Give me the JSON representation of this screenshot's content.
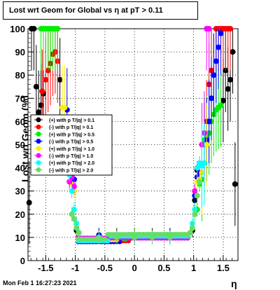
{
  "title": "Lost wrt Geom for Global vs   η at pT > 0.11",
  "ylabel": "Lost  wrt  Geom (%)",
  "xlabel": "η",
  "timestamp": "Mon Feb  1 16:27:23 2021",
  "chart_data": {
    "type": "scatter",
    "title": "Lost wrt Geom for Global vs   η at pT > 0.11",
    "xlabel": "η",
    "ylabel": "Lost  wrt  Geom (%)",
    "xlim": [
      -1.8,
      1.75
    ],
    "ylim": [
      0,
      100
    ],
    "grid": true,
    "legend_position": "middle-left",
    "x_ticks": [
      -1.5,
      -1,
      -0.5,
      0,
      0.5,
      1,
      1.5
    ],
    "x_tick_labels": [
      "-1.5",
      "-1",
      "-0.5",
      "0",
      "0.5",
      "1",
      "1.5"
    ],
    "y_ticks": [
      0,
      10,
      20,
      30,
      40,
      50,
      60,
      70,
      80,
      90,
      100
    ],
    "y_tick_labels": [
      "0",
      "10",
      "20",
      "30",
      "40",
      "50",
      "60",
      "70",
      "80",
      "90",
      "100"
    ],
    "series": [
      {
        "name": "(+) with p T/|q| > 0.1",
        "color": "#000000",
        "x": [
          -1.78,
          -1.74,
          -1.7,
          -1.66,
          -1.62,
          -1.58,
          -1.54,
          -1.26,
          -1.02,
          -0.98,
          -0.6,
          -0.3,
          0.0,
          0.3,
          0.6,
          0.98,
          1.02,
          1.06,
          1.5,
          1.54,
          1.58,
          1.62,
          1.66,
          1.7
        ],
        "y": [
          25,
          100,
          100,
          75,
          64,
          67,
          72,
          78,
          35,
          13,
          11,
          11,
          11,
          11,
          11,
          13,
          26,
          39,
          69,
          82,
          74,
          78,
          90,
          33
        ]
      },
      {
        "name": "(-) with p T/|q| > 0.1",
        "color": "#ff0000",
        "x": [
          -1.56,
          -1.5,
          -1.46,
          -1.42,
          -1.38,
          -1.34,
          -1.3,
          -1.02,
          -0.6,
          0.0,
          0.6,
          1.02,
          1.22,
          1.26,
          1.3,
          1.34,
          1.38,
          1.42,
          1.46,
          1.5,
          1.54,
          1.58,
          1.62
        ],
        "y": [
          73,
          78,
          82,
          85,
          89,
          90,
          86,
          30,
          11,
          11,
          11,
          30,
          60,
          76,
          82,
          80,
          100,
          100,
          100,
          100,
          100,
          100,
          100
        ]
      },
      {
        "name": "(+) with p T/|q| > 0.5",
        "color": "#00ee00",
        "x": [
          -1.58,
          -1.54,
          -1.5,
          -1.46,
          -1.42,
          -1.38,
          -1.34,
          -1.3,
          -1.02,
          -0.6,
          0.0,
          0.6,
          1.02,
          1.06,
          1.1,
          1.14,
          1.18,
          1.22,
          1.26,
          1.3,
          1.34,
          1.38,
          1.42,
          1.46
        ],
        "y": [
          100,
          100,
          100,
          100,
          100,
          100,
          100,
          100,
          38,
          11,
          11,
          11,
          22,
          22,
          33,
          35,
          52,
          53,
          55,
          60,
          63,
          65,
          66,
          67
        ]
      },
      {
        "name": "(-) with p T/|q| > 0.5",
        "color": "#0000ff",
        "x": [
          -1.14,
          -1.02,
          -0.6,
          0.0,
          0.6,
          1.02,
          1.06,
          1.1,
          1.14,
          1.18,
          1.22,
          1.26,
          1.3,
          1.34,
          1.38,
          1.42,
          1.46
        ],
        "y": [
          65,
          35,
          11,
          10,
          11,
          28,
          36,
          38,
          41,
          50,
          52,
          60,
          70,
          80,
          86,
          92,
          98
        ]
      },
      {
        "name": "(+) with p T/|q| > 1.0",
        "color": "#ffee00",
        "x": [
          -1.22,
          -1.18,
          -1.06,
          -1.02,
          -0.6,
          0.0,
          0.6,
          1.02,
          1.06,
          1.1,
          1.14,
          1.18,
          1.22
        ],
        "y": [
          66,
          66,
          33,
          30,
          10,
          10,
          10,
          30,
          34,
          35,
          38,
          42,
          50
        ]
      },
      {
        "name": "(-) with p T/|q| > 1.0",
        "color": "#ff00ff",
        "x": [
          -1.1,
          -1.06,
          -1.02,
          -0.6,
          0.0,
          0.6,
          1.02,
          1.06,
          1.1,
          1.14,
          1.18,
          1.22,
          1.26
        ],
        "y": [
          34,
          36,
          32,
          10,
          10,
          10,
          30,
          40,
          42,
          50,
          55,
          100,
          100
        ]
      },
      {
        "name": "(+) with p T/|q| > 2.0",
        "color": "#00ffff",
        "x": [
          -1.1,
          -1.06,
          -1.02,
          -0.98,
          -0.6,
          0.0,
          0.6,
          0.98,
          1.02,
          1.06,
          1.1,
          1.14,
          1.18
        ],
        "y": [
          37,
          30,
          22,
          16,
          10,
          10,
          10,
          16,
          22,
          40,
          42,
          41,
          42
        ]
      },
      {
        "name": "(-) with p T/|q| > 2.0",
        "color": "#66dd66",
        "x": [
          -1.06,
          -1.02,
          -0.98,
          -0.94,
          -0.6,
          -0.3,
          0.0,
          0.3,
          0.6,
          0.94,
          0.98,
          1.02,
          1.06,
          1.1
        ],
        "y": [
          20,
          18,
          14,
          12,
          10,
          10,
          10,
          10,
          10,
          12,
          14,
          20,
          28,
          34
        ]
      }
    ]
  }
}
